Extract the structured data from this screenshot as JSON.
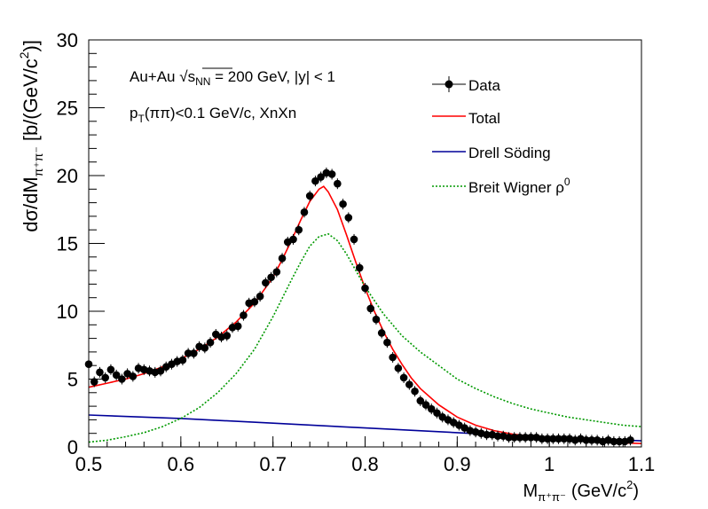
{
  "chart_data": {
    "type": "line",
    "title": "",
    "xlabel": "M",
    "xlabel_sub": "π⁺π⁻",
    "xlabel_unit": "(GeV/c",
    "xlabel_unit_sup": "2",
    "xlabel_unit_close": ")",
    "ylabel": "dσ/dM",
    "ylabel_sub": "π⁺π⁻",
    "ylabel_unit": "[b/(GeV/c",
    "ylabel_unit_sup": "2",
    "ylabel_unit_close": ")]",
    "xlim": [
      0.5,
      1.1
    ],
    "ylim": [
      0,
      30
    ],
    "xticks": [
      0.5,
      0.6,
      0.7,
      0.8,
      0.9,
      1.0,
      1.1
    ],
    "xtick_labels": [
      "0.5",
      "0.6",
      "0.7",
      "0.8",
      "0.9",
      "1",
      "1.1"
    ],
    "yticks": [
      0,
      5,
      10,
      15,
      20,
      25,
      30
    ],
    "ytick_labels": [
      "0",
      "5",
      "10",
      "15",
      "20",
      "25",
      "30"
    ],
    "annotations": {
      "line1_pre": "Au+Au ",
      "line1_sqrt": "s",
      "line1_sqrt_sub": "NN",
      "line1_post": " = 200 GeV, |y| < 1",
      "line2_p": "p",
      "line2_sub": "T",
      "line2_post": "(ππ)<0.1 GeV/c, XnXn"
    },
    "legend": {
      "position": "top-right",
      "entries": [
        {
          "label": "Data",
          "style": "marker"
        },
        {
          "label": "Total",
          "style": "solid",
          "color": "#ff0000"
        },
        {
          "label": "Drell Söding",
          "style": "solid",
          "color": "#000099"
        },
        {
          "label": "Breit Wigner ρ",
          "sup": "0",
          "style": "dotted",
          "color": "#009900"
        }
      ]
    },
    "series": [
      {
        "name": "Data",
        "color": "#000000",
        "x": [
          0.5,
          0.506,
          0.512,
          0.518,
          0.524,
          0.53,
          0.536,
          0.542,
          0.548,
          0.554,
          0.56,
          0.566,
          0.572,
          0.578,
          0.584,
          0.59,
          0.596,
          0.602,
          0.608,
          0.614,
          0.62,
          0.626,
          0.632,
          0.638,
          0.644,
          0.65,
          0.656,
          0.662,
          0.668,
          0.674,
          0.68,
          0.686,
          0.692,
          0.698,
          0.704,
          0.71,
          0.716,
          0.722,
          0.728,
          0.734,
          0.74,
          0.746,
          0.752,
          0.758,
          0.764,
          0.77,
          0.776,
          0.782,
          0.788,
          0.794,
          0.8,
          0.806,
          0.812,
          0.818,
          0.824,
          0.83,
          0.836,
          0.842,
          0.848,
          0.854,
          0.86,
          0.866,
          0.872,
          0.878,
          0.884,
          0.89,
          0.896,
          0.902,
          0.908,
          0.914,
          0.92,
          0.926,
          0.932,
          0.938,
          0.944,
          0.95,
          0.956,
          0.962,
          0.968,
          0.974,
          0.98,
          0.986,
          0.992,
          0.998,
          1.004,
          1.01,
          1.016,
          1.022,
          1.028,
          1.034,
          1.04,
          1.046,
          1.052,
          1.058,
          1.064,
          1.07,
          1.076,
          1.082,
          1.088
        ],
        "values": [
          6.1,
          4.8,
          5.5,
          5.1,
          5.7,
          5.3,
          5.0,
          5.4,
          5.2,
          5.8,
          5.7,
          5.6,
          5.5,
          5.6,
          5.9,
          6.1,
          6.3,
          6.4,
          6.9,
          6.9,
          7.4,
          7.3,
          7.7,
          8.3,
          8.1,
          8.2,
          8.8,
          8.9,
          9.7,
          10.6,
          10.7,
          11.1,
          12.1,
          12.5,
          12.9,
          13.9,
          15.1,
          15.3,
          16.0,
          17.3,
          18.5,
          19.6,
          19.9,
          20.2,
          20.1,
          19.4,
          17.9,
          16.9,
          15.3,
          13.2,
          11.7,
          10.2,
          9.4,
          8.4,
          7.7,
          6.6,
          5.8,
          5.1,
          4.6,
          4.1,
          3.4,
          3.1,
          2.8,
          2.5,
          2.2,
          2.0,
          1.8,
          1.6,
          1.4,
          1.2,
          1.1,
          1.0,
          0.9,
          0.9,
          0.8,
          0.8,
          0.7,
          0.7,
          0.7,
          0.7,
          0.7,
          0.7,
          0.6,
          0.6,
          0.6,
          0.6,
          0.6,
          0.6,
          0.5,
          0.6,
          0.5,
          0.5,
          0.5,
          0.4,
          0.5,
          0.4,
          0.4,
          0.4,
          0.5
        ]
      },
      {
        "name": "Total",
        "color": "#ff0000",
        "x": [
          0.5,
          0.52,
          0.54,
          0.56,
          0.58,
          0.6,
          0.62,
          0.64,
          0.66,
          0.68,
          0.7,
          0.71,
          0.72,
          0.73,
          0.74,
          0.75,
          0.755,
          0.76,
          0.77,
          0.78,
          0.79,
          0.8,
          0.81,
          0.82,
          0.83,
          0.84,
          0.85,
          0.86,
          0.88,
          0.9,
          0.92,
          0.94,
          0.96,
          0.98,
          1.0,
          1.02,
          1.04,
          1.06,
          1.08,
          1.1
        ],
        "values": [
          4.4,
          4.7,
          5.0,
          5.4,
          5.9,
          6.5,
          7.2,
          8.1,
          9.2,
          10.6,
          12.5,
          13.8,
          15.2,
          16.7,
          18.1,
          19.0,
          19.2,
          18.8,
          17.5,
          15.6,
          13.6,
          11.7,
          10.0,
          8.5,
          7.2,
          6.1,
          5.1,
          4.3,
          3.1,
          2.2,
          1.6,
          1.2,
          0.95,
          0.8,
          0.65,
          0.55,
          0.45,
          0.38,
          0.3,
          0.25
        ]
      },
      {
        "name": "Drell Söding",
        "color": "#000099",
        "x": [
          0.5,
          0.6,
          0.7,
          0.8,
          0.9,
          1.0,
          1.1
        ],
        "values": [
          2.35,
          2.1,
          1.75,
          1.4,
          1.05,
          0.7,
          0.45
        ]
      },
      {
        "name": "Breit Wigner ρ0",
        "color": "#009900",
        "x": [
          0.5,
          0.52,
          0.54,
          0.56,
          0.58,
          0.6,
          0.62,
          0.64,
          0.66,
          0.68,
          0.7,
          0.72,
          0.73,
          0.74,
          0.75,
          0.76,
          0.77,
          0.78,
          0.79,
          0.8,
          0.82,
          0.84,
          0.86,
          0.88,
          0.9,
          0.92,
          0.94,
          0.96,
          0.98,
          1.0,
          1.02,
          1.04,
          1.06,
          1.08,
          1.1
        ],
        "values": [
          0.35,
          0.5,
          0.75,
          1.05,
          1.5,
          2.1,
          2.9,
          4.0,
          5.4,
          7.2,
          9.6,
          12.3,
          13.6,
          14.8,
          15.5,
          15.7,
          15.2,
          14.2,
          13.0,
          11.8,
          9.8,
          8.2,
          7.0,
          6.0,
          5.0,
          4.3,
          3.7,
          3.2,
          2.8,
          2.5,
          2.2,
          2.0,
          1.8,
          1.6,
          1.5
        ]
      }
    ]
  }
}
